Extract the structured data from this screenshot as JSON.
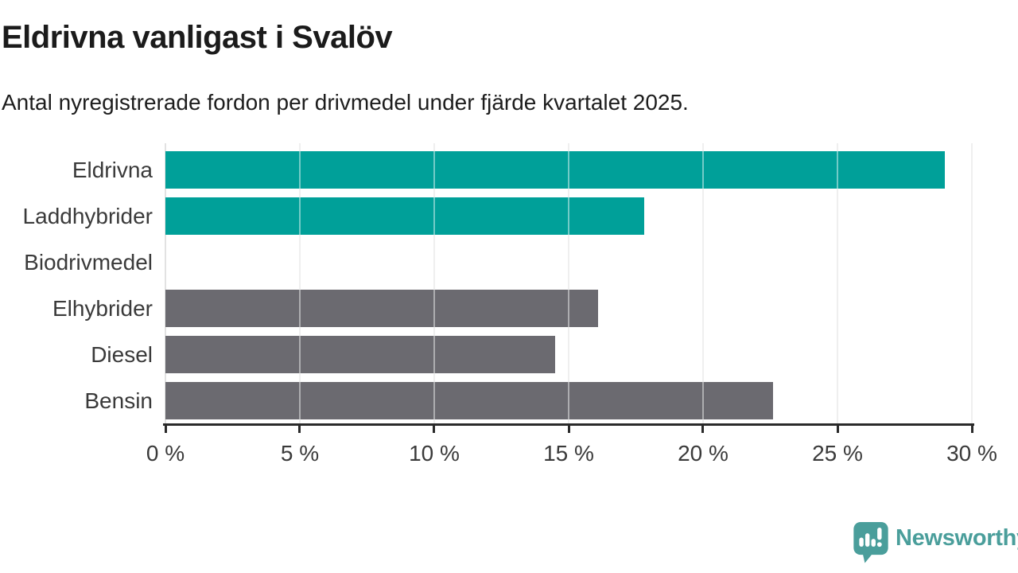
{
  "header": {
    "title": "Eldrivna vanligast i Svalöv",
    "subtitle": "Antal nyregistrerade fordon per drivmedel under fjärde kvartalet 2025."
  },
  "chart_data": {
    "type": "bar",
    "orientation": "horizontal",
    "title": "Eldrivna vanligast i Svalöv",
    "subtitle": "Antal nyregistrerade fordon per drivmedel under fjärde kvartalet 2025.",
    "categories": [
      "Eldrivna",
      "Laddhybrider",
      "Biodrivmedel",
      "Elhybrider",
      "Diesel",
      "Bensin"
    ],
    "values": [
      29.0,
      17.8,
      0,
      16.1,
      14.5,
      22.6
    ],
    "unit": "%",
    "xlim": [
      0,
      30
    ],
    "x_ticks": [
      0,
      5,
      10,
      15,
      20,
      25,
      30
    ],
    "x_tick_labels": [
      "0 %",
      "5 %",
      "10 %",
      "15 %",
      "20 %",
      "25 %",
      "30 %"
    ],
    "grid": true,
    "legend": "none",
    "colors": {
      "highlight": "#00A099",
      "default": "#6B6A70",
      "gridline": "#e2e2e2",
      "axis": "#2a2a2a"
    },
    "bar_colors": [
      "#00A099",
      "#00A099",
      "#6B6A70",
      "#6B6A70",
      "#6B6A70",
      "#6B6A70"
    ]
  },
  "footer": {
    "brand": "Newsworthy",
    "brand_color": "#4a9e9b",
    "logo_icon": "newsworthy-speech-bubble-chart-icon"
  }
}
